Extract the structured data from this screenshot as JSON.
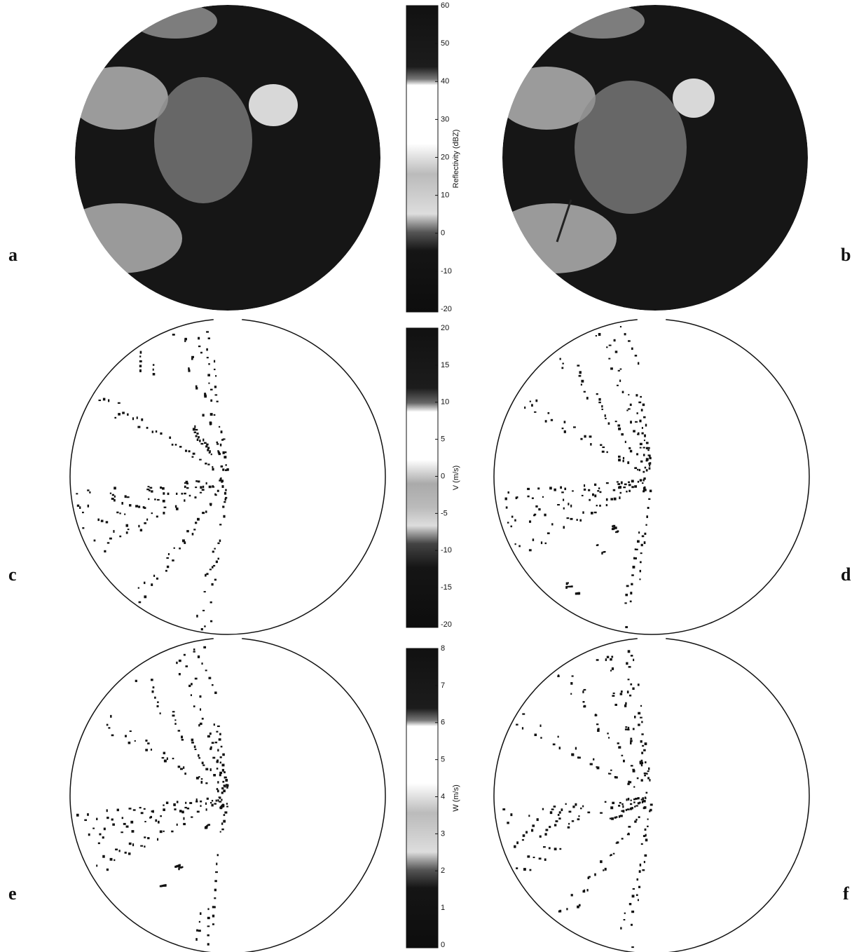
{
  "panels": [
    {
      "label": "a"
    },
    {
      "label": "b"
    },
    {
      "label": "c"
    },
    {
      "label": "d"
    },
    {
      "label": "e"
    },
    {
      "label": "f"
    }
  ],
  "colorbars": [
    {
      "label": "Reflectivity (dBZ)",
      "ticks": [
        60,
        50,
        40,
        30,
        20,
        10,
        0,
        -10,
        -20
      ]
    },
    {
      "label": "V (m/s)",
      "ticks": [
        20,
        15,
        10,
        5,
        0,
        -5,
        -10,
        -15,
        -20
      ]
    },
    {
      "label": "W (m/s)",
      "ticks": [
        8,
        7,
        6,
        5,
        4,
        3,
        2,
        1,
        0
      ]
    }
  ]
}
